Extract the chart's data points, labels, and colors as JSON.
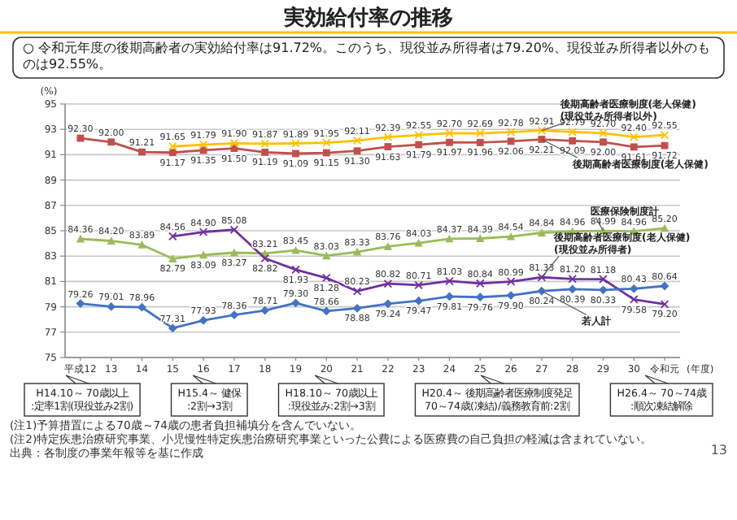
{
  "chart_data": {
    "type": "line",
    "title": "実効給付率の推移",
    "subtitle": "○ 令和元年度の後期高齢者の実効給付率は91.72%。このうち、現役並み所得者は79.20%、現役並み所得者以外のものは92.55%。",
    "ylabel": "(%)",
    "xlabel": "(年度)",
    "categories": [
      "平成12",
      "13",
      "14",
      "15",
      "16",
      "17",
      "18",
      "19",
      "20",
      "21",
      "22",
      "23",
      "24",
      "25",
      "26",
      "27",
      "28",
      "29",
      "30",
      "令和元"
    ],
    "ylim": [
      75,
      95
    ],
    "yticks": [
      75,
      77,
      79,
      81,
      83,
      85,
      87,
      89,
      91,
      93,
      95
    ],
    "grid": "y",
    "line_style": "solid",
    "series": [
      {
        "name": "後期高齢者医療制度(老人保健)",
        "color": "#c0504d",
        "marker": "square",
        "values": [
          92.3,
          92.0,
          91.21,
          91.17,
          91.35,
          91.5,
          91.19,
          91.09,
          91.15,
          91.3,
          91.63,
          91.79,
          91.97,
          91.96,
          92.06,
          92.21,
          92.09,
          92.0,
          91.61,
          91.72
        ],
        "value_labels": [
          "92.30",
          "92.00",
          "91.21",
          "91.17",
          "91.35",
          "91.50",
          "91.19",
          "91.09",
          "91.15",
          "91.30",
          "91.63",
          "91.79",
          "91.97",
          "91.96",
          "92.06",
          "92.21",
          "92.09",
          "92.00",
          "91.61",
          "91.72"
        ]
      },
      {
        "name": "後期高齢者医療制度(老人保健)(現役並み所得者以外)",
        "color": "#ffc000",
        "marker": "cross",
        "values": [
          null,
          null,
          null,
          91.65,
          91.79,
          91.9,
          91.87,
          91.89,
          91.95,
          92.11,
          92.39,
          92.55,
          92.7,
          92.69,
          92.78,
          92.91,
          92.79,
          92.7,
          92.4,
          92.55
        ],
        "value_labels": [
          null,
          null,
          null,
          "91.65",
          "91.79",
          "91.90",
          "91.87",
          "91.89",
          "91.95",
          "92.11",
          "92.39",
          "92.55",
          "92.70",
          "92.69",
          "92.78",
          "92.91",
          "92.79",
          "92.70",
          "92.40",
          "92.55"
        ]
      },
      {
        "name": "医療保険制度計",
        "color": "#9bbb59",
        "marker": "triangle",
        "values": [
          84.36,
          84.2,
          83.89,
          82.79,
          83.09,
          83.27,
          83.21,
          83.45,
          83.03,
          83.33,
          83.76,
          84.03,
          84.37,
          84.39,
          84.54,
          84.84,
          84.96,
          84.99,
          84.96,
          85.2
        ],
        "value_labels": [
          "84.36",
          "84.20",
          "83.89",
          "82.79",
          "83.09",
          "83.27",
          "83.21",
          "83.45",
          "83.03",
          "83.33",
          "83.76",
          "84.03",
          "84.37",
          "84.39",
          "84.54",
          "84.84",
          "84.96",
          "84.99",
          "84.96",
          "85.20"
        ]
      },
      {
        "name": "後期高齢者医療制度(老人保健)(現役並み所得者)",
        "color": "#7030a0",
        "marker": "cross",
        "values": [
          null,
          null,
          null,
          84.56,
          84.9,
          85.08,
          82.82,
          81.93,
          81.28,
          80.23,
          80.82,
          80.71,
          81.03,
          80.84,
          80.99,
          81.33,
          81.2,
          81.18,
          79.58,
          79.2
        ],
        "value_labels": [
          null,
          null,
          null,
          "84.56",
          "84.90",
          "85.08",
          "82.82",
          "81.93",
          "81.28",
          "80.23",
          "80.82",
          "80.71",
          "81.03",
          "80.84",
          "80.99",
          "81.33",
          "81.20",
          "81.18",
          "79.58",
          "79.20"
        ]
      },
      {
        "name": "若人計",
        "color": "#4472c4",
        "marker": "diamond",
        "values": [
          79.26,
          79.01,
          78.96,
          77.31,
          77.93,
          78.36,
          78.71,
          79.3,
          78.66,
          78.88,
          79.24,
          79.47,
          79.81,
          79.76,
          79.9,
          80.24,
          80.39,
          80.33,
          80.43,
          80.64
        ],
        "value_labels": [
          "79.26",
          "79.01",
          "78.96",
          "77.31",
          "77.93",
          "78.36",
          "78.71",
          "79.30",
          "78.66",
          "78.88",
          "79.24",
          "79.47",
          "79.81",
          "79.76",
          "79.90",
          "80.24",
          "80.39",
          "80.33",
          "80.43",
          "80.64"
        ]
      }
    ],
    "annotations": [
      "H14.10～ 70歳以上\n:定率1割(現役並み2割)",
      "H15.4～ 健保\n:2割→3割",
      "H18.10～ 70歳以上\n:現役並み:2割→3割",
      "H20.4～ 後期高齢者医療制度発足\n70～74歳(凍結)/義務教育前:2割",
      "H26.4～ 70～74歳\n:順次凍結解除",
      "(注1)予算措置による70歳～74歳の患者負担補填分を含んでいない。",
      "(注2)特定疾患治療研究事業、小児慢性特定疾患治療研究事業といった公費による医療費の自己負担の軽減は含まれていない。",
      "出典：各制度の事業年報等を基に作成",
      "13"
    ]
  }
}
